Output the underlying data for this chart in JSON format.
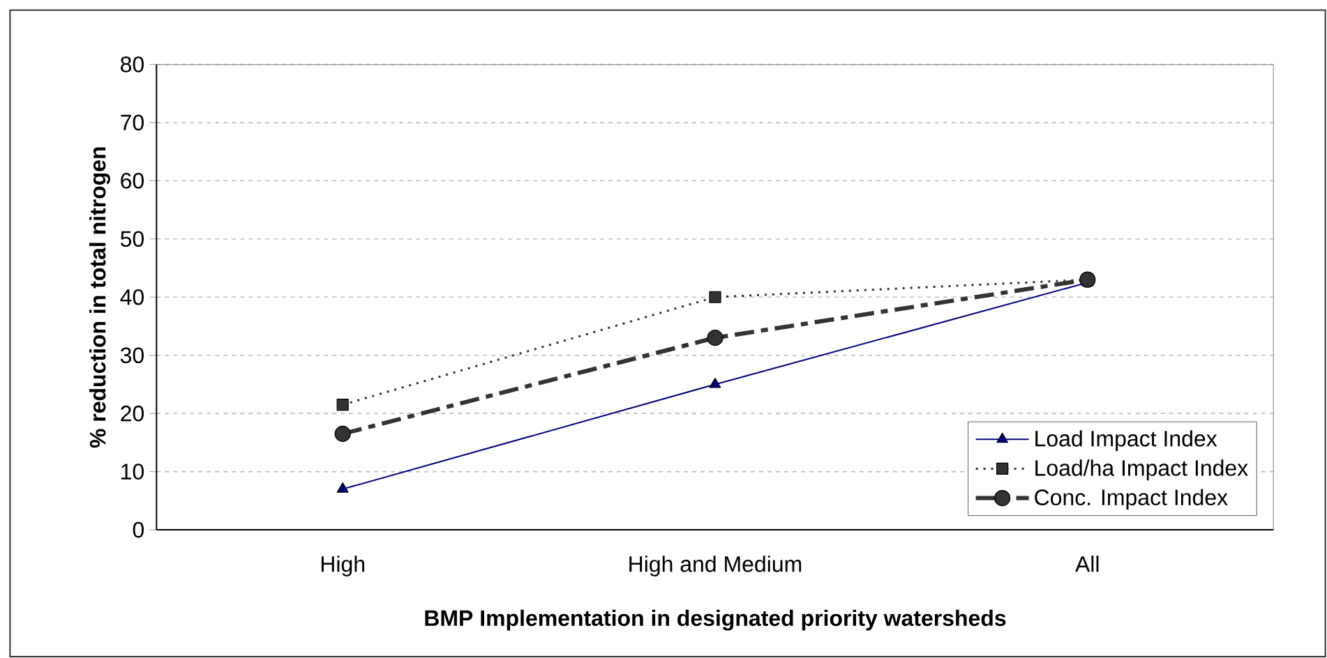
{
  "chart_data": {
    "type": "line",
    "xlabel": "BMP Implementation in designated priority watersheds",
    "ylabel": "% reduction in total nitrogen",
    "categories": [
      "High",
      "High and Medium",
      "All"
    ],
    "series": [
      {
        "name": "Load Impact Index",
        "color": "#000080",
        "marker": "triangle",
        "line_style": "solid",
        "values": [
          7,
          25,
          42.5
        ]
      },
      {
        "name": "Load/ha Impact Index",
        "color": "#333333",
        "marker": "square",
        "line_style": "dotted",
        "values": [
          21.5,
          40,
          43
        ]
      },
      {
        "name": "Conc. Impact Index",
        "color": "#333333",
        "marker": "circle",
        "line_style": "dashed",
        "values": [
          16.5,
          33,
          43
        ]
      }
    ],
    "ylim": [
      0,
      80
    ],
    "yticks": [
      0,
      10,
      20,
      30,
      40,
      50,
      60,
      70,
      80
    ],
    "grid": "y",
    "legend": "bottom right"
  }
}
